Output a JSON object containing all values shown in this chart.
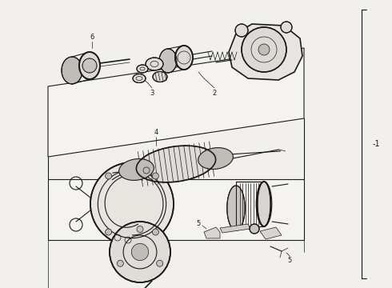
{
  "bg_color": "#f2f0ed",
  "line_color": "#1a1a1a",
  "figsize": [
    4.9,
    3.6
  ],
  "dpi": 100,
  "bracket_label": "-1"
}
